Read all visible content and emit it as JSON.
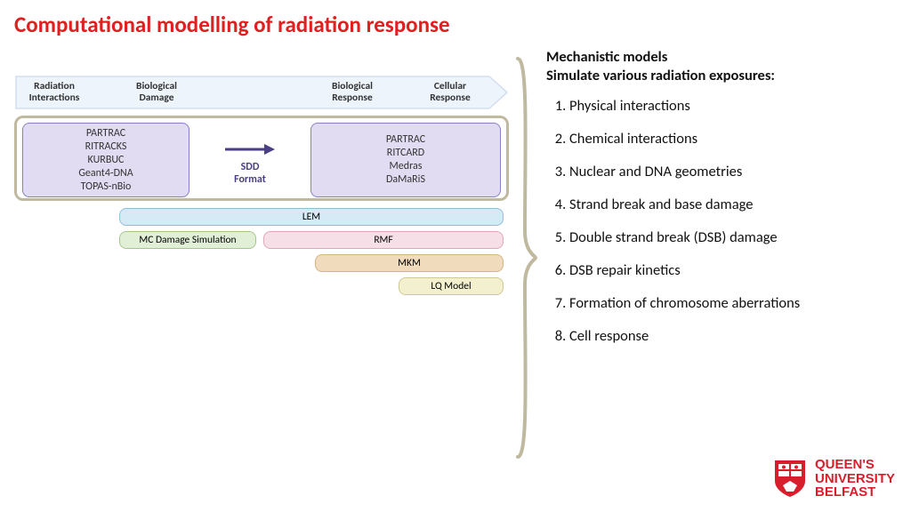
{
  "title": "Computational modelling of radiation response",
  "title_color": "#e02020",
  "header": {
    "c1": "Radiation\nInteractions",
    "c2": "Biological\nDamage",
    "c3": "Biological\nResponse",
    "c4": "Cellular\nResponse",
    "band_fill": "#eef4fb",
    "band_stroke": "#d2def0"
  },
  "main_group_border": "#bfb9a0",
  "purple": {
    "fill": "#e1dcf2",
    "stroke": "#8a7fc0",
    "left_items": [
      "PARTRAC",
      "RITRACKS",
      "KURBUC",
      "Geant4-DNA",
      "TOPAS-nBio"
    ],
    "right_items": [
      "PARTRAC",
      "RITCARD",
      "Medras",
      "DaMaRiS"
    ]
  },
  "sdd": {
    "line1": "SDD",
    "line2": "Format",
    "arrow_color": "#4a3f82"
  },
  "bars": {
    "lem": {
      "label": "LEM",
      "fill": "#d6eaf5",
      "stroke": "#8fbdd8"
    },
    "mc": {
      "label": "MC Damage Simulation",
      "fill": "#e2efd7",
      "stroke": "#a6c58b"
    },
    "rmf": {
      "label": "RMF",
      "fill": "#f6dfe6",
      "stroke": "#dca8bb"
    },
    "mkm": {
      "label": "MKM",
      "fill": "#f0dcbd",
      "stroke": "#d4b484"
    },
    "lq": {
      "label": "LQ Model",
      "fill": "#f2f0cf",
      "stroke": "#cfca93"
    }
  },
  "brace_color": "#bfb9a0",
  "right": {
    "h1": "Mechanistic models",
    "h2": "Simulate various radiation exposures:",
    "items": [
      "Physical interactions",
      "Chemical interactions",
      "Nuclear and DNA geometries",
      "Strand break and base damage",
      "Double strand break (DSB) damage",
      "DSB repair kinetics",
      "Formation of chromosome aberrations",
      "Cell response"
    ]
  },
  "logo": {
    "brand_color": "#d81e2c",
    "line1": "QUEEN'S",
    "line2": "UNIVERSITY",
    "line3": "BELFAST"
  }
}
